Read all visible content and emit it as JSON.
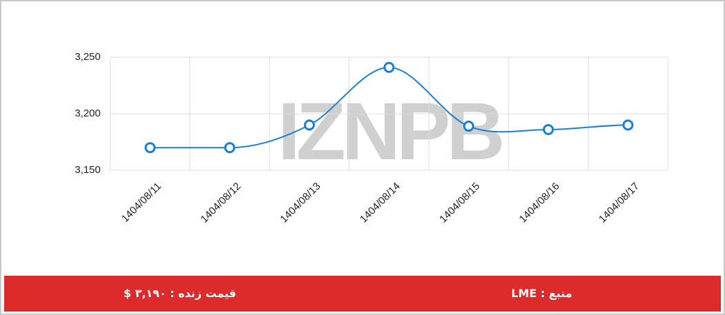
{
  "chart_data": {
    "type": "line",
    "watermark": "IZNPB",
    "categories": [
      "1404/08/11",
      "1404/08/12",
      "1404/08/13",
      "1404/08/14",
      "1404/08/15",
      "1404/08/16",
      "1404/08/17"
    ],
    "values": [
      3170,
      3170,
      3190,
      3241,
      3189,
      3186,
      3190
    ],
    "color": "#1a7fd4",
    "ylim": [
      3150,
      3250
    ],
    "yticks": [
      {
        "value": 3150,
        "label": "3,150"
      },
      {
        "value": 3200,
        "label": "3,200"
      },
      {
        "value": 3250,
        "label": "3,250"
      }
    ],
    "grid": true
  },
  "footer": {
    "price": "قیمت زنده : ۳,۱۹۰ $",
    "source": "منبع : LME"
  }
}
